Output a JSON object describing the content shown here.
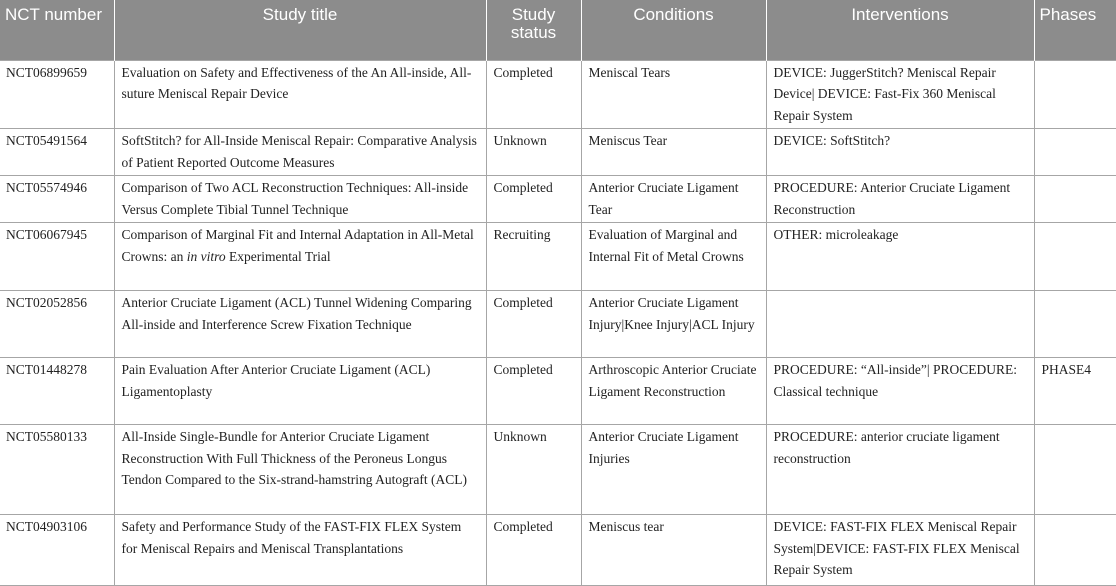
{
  "headers": {
    "nct": "NCT number",
    "title": "Study title",
    "status": "Study status",
    "conditions": "Conditions",
    "interventions": "Interventions",
    "phases": "Phases"
  },
  "rows": [
    {
      "nct": "NCT06899659",
      "title": "Evaluation on Safety and Effectiveness of the An All-inside, All-suture Meniscal Repair Device",
      "status": "Completed",
      "conditions": "Meniscal Tears",
      "interventions": "DEVICE: JuggerStitch? Meniscal Repair Device| DEVICE: Fast-Fix 360 Meniscal Repair System",
      "phases": ""
    },
    {
      "nct": "NCT05491564",
      "title": "SoftStitch? for All-Inside Meniscal Repair: Comparative Analysis of Patient Reported Outcome Measures",
      "status": "Unknown",
      "conditions": "Meniscus Tear",
      "interventions": "DEVICE: SoftStitch?",
      "phases": ""
    },
    {
      "nct": "NCT05574946",
      "title": "Comparison of Two ACL Reconstruction Techniques: All-inside Versus Complete Tibial Tunnel Technique",
      "status": "Completed",
      "conditions": "Anterior Cruciate Ligament Tear",
      "interventions": "PROCEDURE: Anterior Cruciate Ligament Reconstruction",
      "phases": ""
    },
    {
      "nct": "NCT06067945",
      "title_pre": "Comparison of Marginal Fit and Internal Adaptation in All-Metal Crowns: an ",
      "title_em": "in vitro",
      "title_post": " Experimental Trial",
      "status": "Recruiting",
      "conditions": "Evaluation of Marginal and Internal Fit of Metal Crowns",
      "interventions": "OTHER: microleakage",
      "phases": ""
    },
    {
      "nct": "NCT02052856",
      "title": "Anterior Cruciate Ligament (ACL) Tunnel Widening Comparing All-inside and Interference Screw Fixation Technique",
      "status": "Completed",
      "conditions": "Anterior Cruciate Ligament Injury|Knee Injury|ACL Injury",
      "interventions": "",
      "phases": ""
    },
    {
      "nct": "NCT01448278",
      "title": "Pain Evaluation After Anterior Cruciate Ligament (ACL) Ligamentoplasty",
      "status": "Completed",
      "conditions": "Arthroscopic Anterior Cruciate Ligament Reconstruction",
      "interventions": "PROCEDURE: “All-inside”| PROCEDURE: Classical technique",
      "phases": "PHASE4"
    },
    {
      "nct": "NCT05580133",
      "title": "All-Inside Single-Bundle for Anterior Cruciate Ligament Reconstruction With Full Thickness of the Peroneus Longus Tendon Compared to the Six-strand-hamstring Autograft (ACL)",
      "status": "Unknown",
      "conditions": "Anterior Cruciate Ligament Injuries",
      "interventions": "PROCEDURE: anterior cruciate ligament reconstruction",
      "phases": ""
    },
    {
      "nct": "NCT04903106",
      "title": "Safety and Performance Study of the FAST-FIX FLEX System for Meniscal Repairs and Meniscal Transplantations",
      "status": "Completed",
      "conditions": "Meniscus tear",
      "interventions": "DEVICE: FAST-FIX FLEX Meniscal Repair System|DEVICE: FAST-FIX FLEX Meniscal Repair System",
      "phases": ""
    }
  ]
}
